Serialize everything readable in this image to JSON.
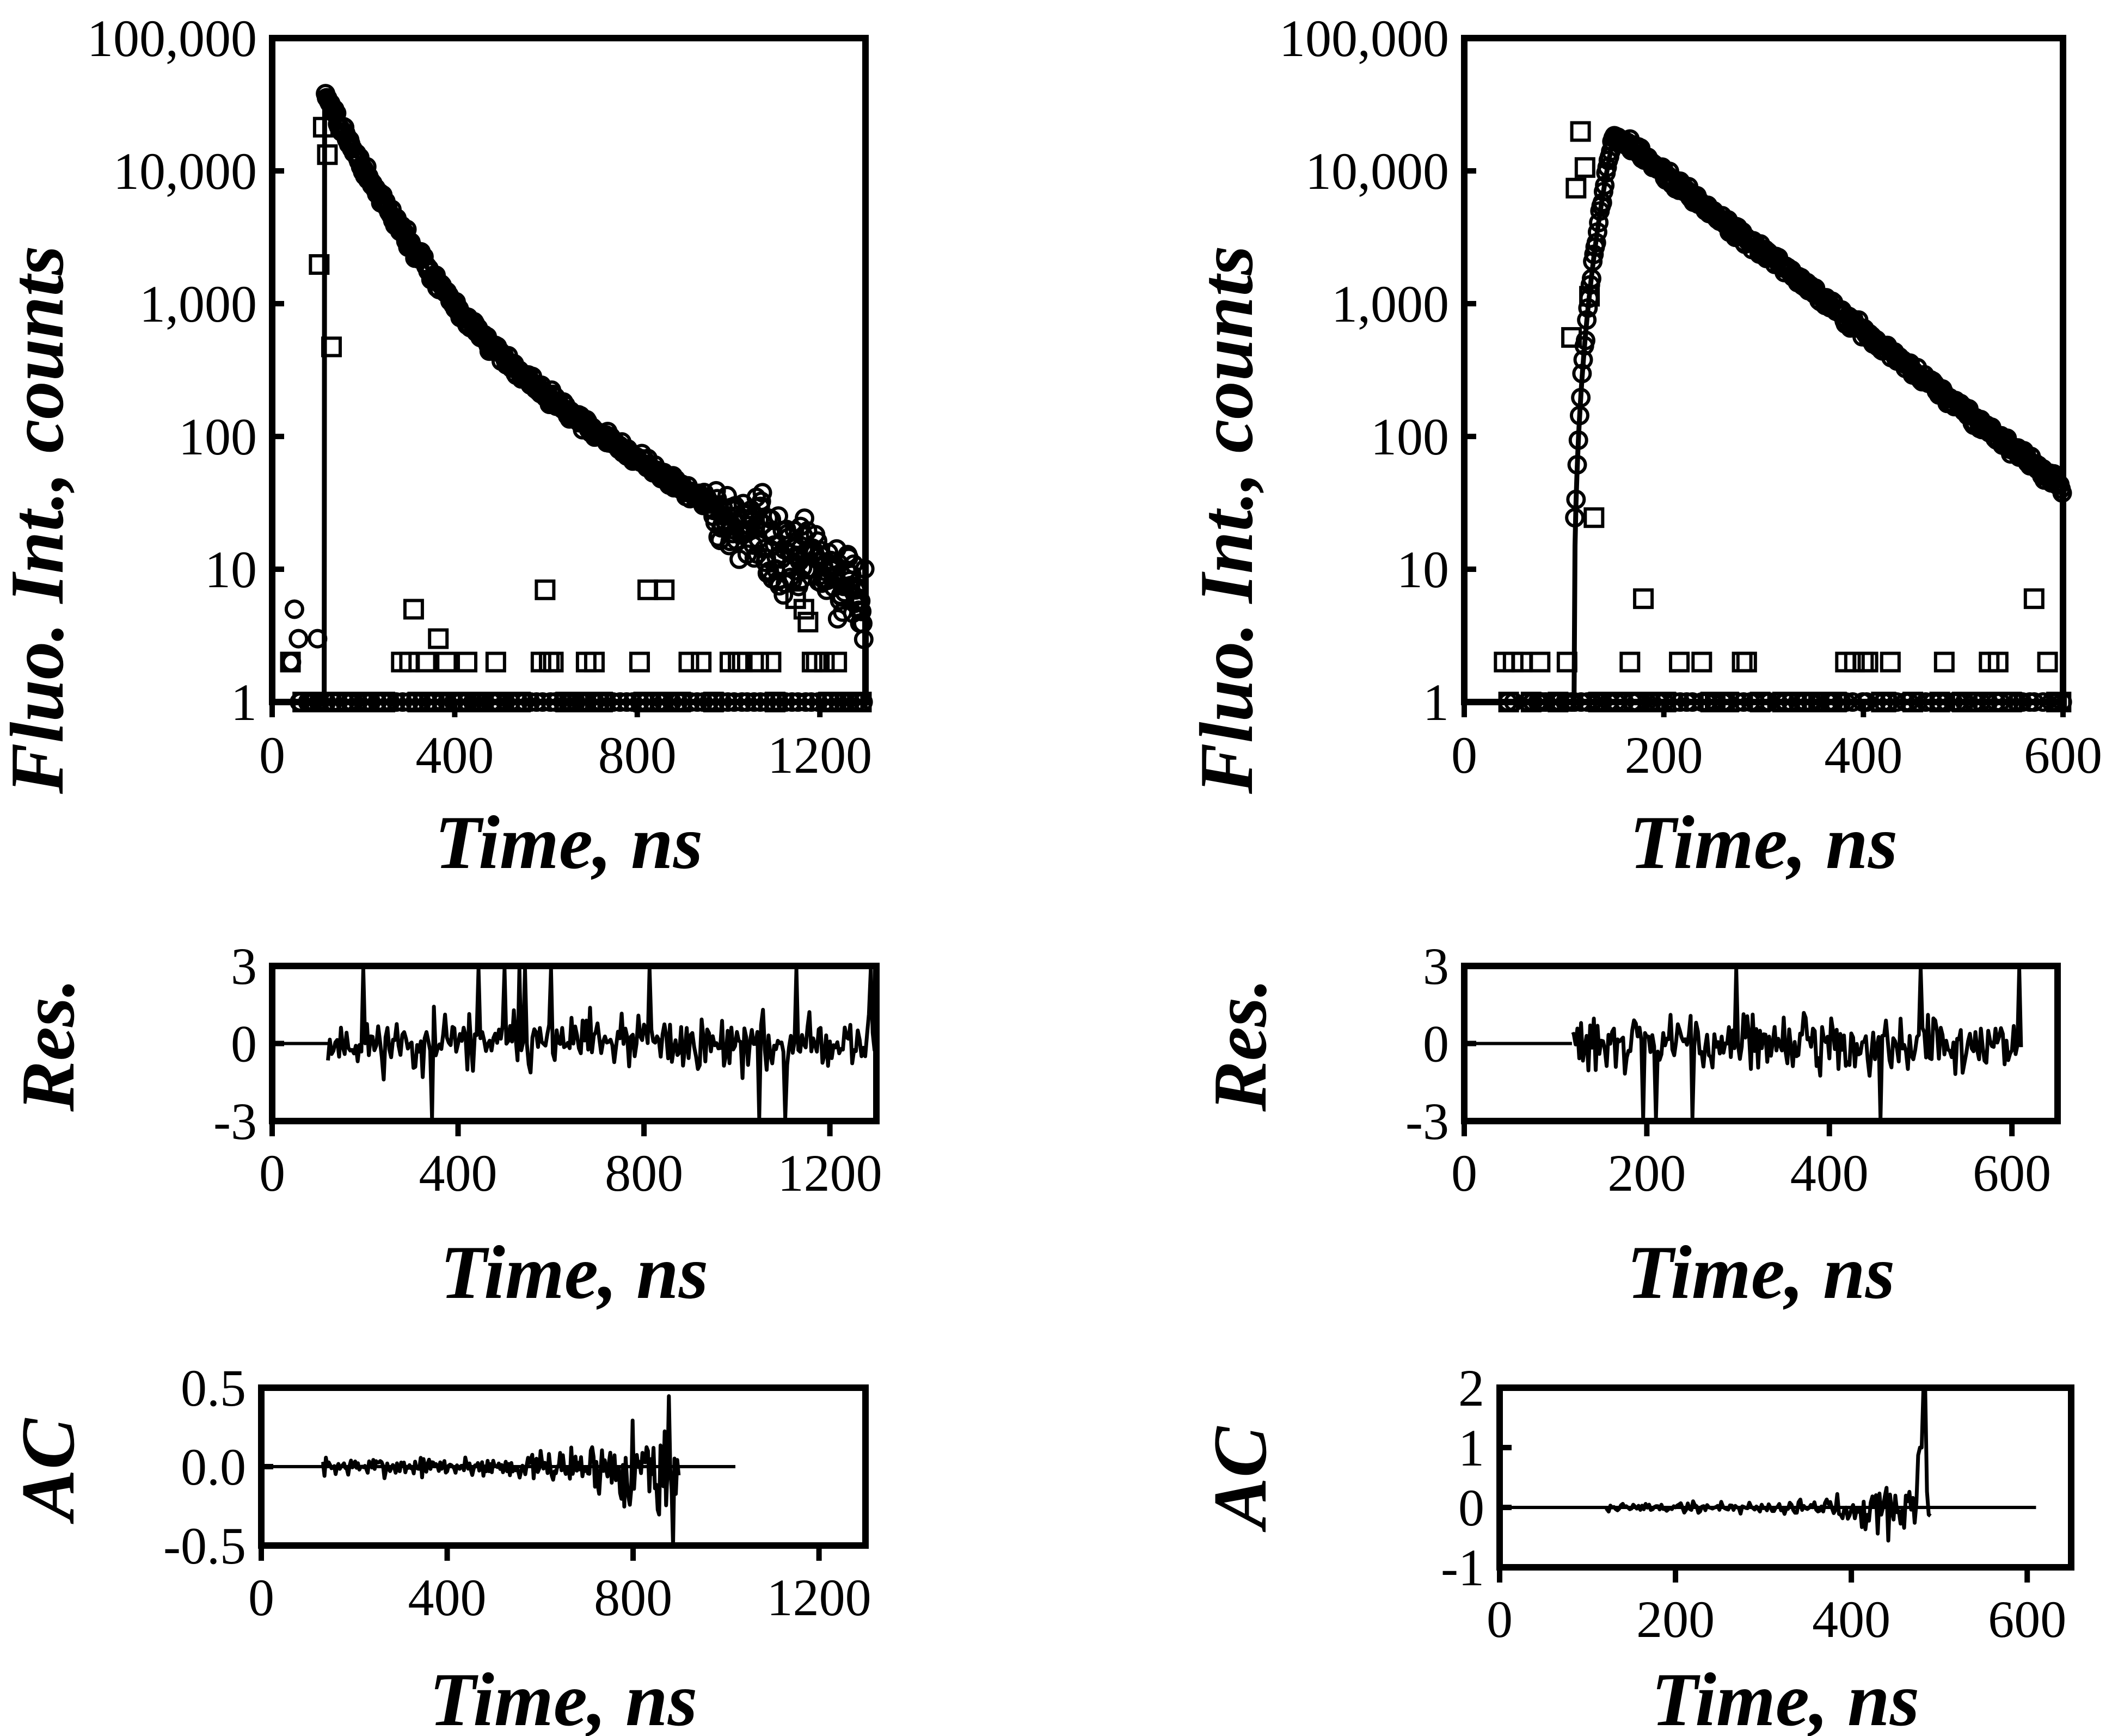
{
  "chart_data": [
    {
      "id": "decay-left",
      "type": "scatter",
      "ylabel": "Fluo. Int., counts",
      "xlabel": "Time, ns",
      "xlim": [
        0,
        1300
      ],
      "ylim": [
        1,
        100000
      ],
      "yscale": "log",
      "xticks": [
        0,
        400,
        800,
        1200
      ],
      "xtick_labels": [
        "0",
        "400",
        "800",
        "1200"
      ],
      "yticks": [
        1,
        10,
        100,
        1000,
        10000,
        100000
      ],
      "ytick_labels": [
        "1",
        "10",
        "100",
        "1,000",
        "10,000",
        "100,000"
      ],
      "series": [
        {
          "name": "decay",
          "marker": "circle",
          "model": {
            "kind": "biexp",
            "t0": 115,
            "rise": 1,
            "a1": 30000,
            "tau1": 70,
            "a2": 2000,
            "tau2": 200,
            "floor": 1.2,
            "peak": 42000
          }
        },
        {
          "name": "IRF",
          "marker": "square",
          "model": {
            "kind": "irf",
            "t0": 115,
            "peak": 25000,
            "width": 9
          }
        },
        {
          "name": "fit",
          "line": true
        }
      ]
    },
    {
      "id": "decay-right",
      "type": "scatter",
      "ylabel": "Fluo. Int., counts",
      "xlabel": "Time, ns",
      "xlim": [
        0,
        600
      ],
      "ylim": [
        1,
        100000
      ],
      "yscale": "log",
      "xticks": [
        0,
        200,
        400,
        600
      ],
      "xtick_labels": [
        "0",
        "200",
        "400",
        "600"
      ],
      "yticks": [
        1,
        10,
        100,
        1000,
        10000,
        100000
      ],
      "ytick_labels": [
        "1",
        "10",
        "100",
        "1,000",
        "10,000",
        "100,000"
      ],
      "series": [
        {
          "name": "decay",
          "marker": "circle",
          "model": {
            "kind": "rise-decay",
            "t0": 110,
            "peak": 19000,
            "tpeak": 150,
            "tau": 73,
            "floor": 1
          }
        },
        {
          "name": "IRF",
          "marker": "square",
          "model": {
            "kind": "irf",
            "t0": 117,
            "peak": 20000,
            "width": 6
          }
        },
        {
          "name": "fit",
          "line": true
        }
      ]
    },
    {
      "id": "res-left",
      "type": "line",
      "ylabel": "Res.",
      "xlabel": "Time, ns",
      "xlim": [
        0,
        1300
      ],
      "ylim": [
        -3,
        3
      ],
      "xticks": [
        0,
        400,
        800,
        1200
      ],
      "xtick_labels": [
        "0",
        "400",
        "800",
        "1200"
      ],
      "yticks": [
        -3,
        0,
        3
      ],
      "ytick_labels": [
        "-3",
        "0",
        "3"
      ],
      "series": [
        {
          "name": "residuals",
          "start": 120,
          "end": 1300,
          "step": 4,
          "amplitude": 0.9,
          "seed": 11
        }
      ]
    },
    {
      "id": "res-right",
      "type": "line",
      "ylabel": "Res.",
      "xlabel": "Time, ns",
      "xlim": [
        0,
        650
      ],
      "ylim": [
        -3,
        3
      ],
      "xticks": [
        0,
        200,
        400,
        600
      ],
      "xtick_labels": [
        "0",
        "200",
        "400",
        "600"
      ],
      "yticks": [
        -3,
        0,
        3
      ],
      "ytick_labels": [
        "-3",
        "0",
        "3"
      ],
      "series": [
        {
          "name": "residuals",
          "start": 118,
          "end": 610,
          "step": 2,
          "amplitude": 0.9,
          "seed": 29
        }
      ]
    },
    {
      "id": "ac-left",
      "type": "line",
      "ylabel": "AC",
      "xlabel": "Time, ns",
      "xlim": [
        0,
        1300
      ],
      "ylim": [
        -0.5,
        0.5
      ],
      "xticks": [
        0,
        400,
        800,
        1200
      ],
      "xtick_labels": [
        "0",
        "400",
        "800",
        "1200"
      ],
      "yticks": [
        -0.5,
        0,
        0.5
      ],
      "ytick_labels": [
        "-0.5",
        "0.0",
        "0.5"
      ],
      "series": [
        {
          "name": "autocorrelation",
          "start": 130,
          "end": 900,
          "step": 3,
          "amplitude": 0.05,
          "growth": 0.45,
          "tail": 1020,
          "seed": 7
        }
      ]
    },
    {
      "id": "ac-right",
      "type": "line",
      "ylabel": "AC",
      "xlabel": "Time, ns",
      "xlim": [
        0,
        650
      ],
      "ylim": [
        -1,
        2
      ],
      "xticks": [
        0,
        200,
        400,
        600
      ],
      "xtick_labels": [
        "0",
        "200",
        "400",
        "600"
      ],
      "yticks": [
        -1,
        0,
        1,
        2
      ],
      "ytick_labels": [
        "-1",
        "0",
        "1",
        "2"
      ],
      "series": [
        {
          "name": "autocorrelation",
          "start": 120,
          "end": 490,
          "step": 2,
          "amplitude": 0.08,
          "growth": 0.8,
          "spike": 2.0,
          "tail": 610,
          "seed": 19
        }
      ]
    }
  ]
}
